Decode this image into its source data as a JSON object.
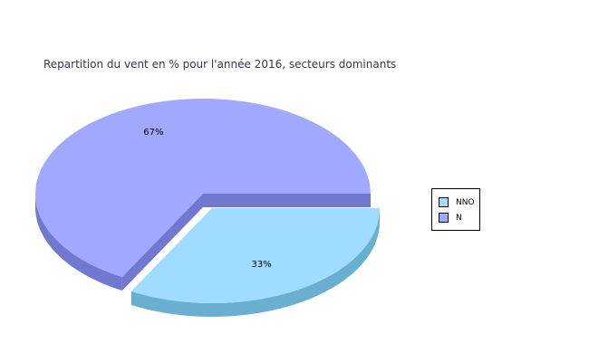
{
  "chart_data": {
    "type": "pie",
    "title": "Repartition du vent en % pour l'année 2016, secteurs dominants",
    "slices": [
      {
        "name": "NNO",
        "value": 33,
        "label": "33%",
        "color": "#a0dcff",
        "side_color": "#6aaed0",
        "exploded": true
      },
      {
        "name": "N",
        "value": 67,
        "label": "67%",
        "color": "#a0a8ff",
        "side_color": "#7078d0",
        "exploded": false
      }
    ],
    "legend_placement": "right",
    "style": "3d"
  }
}
